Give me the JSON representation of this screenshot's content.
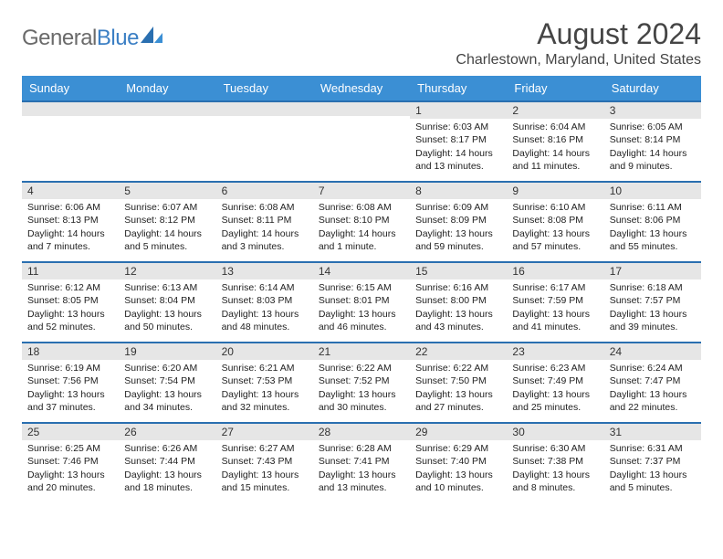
{
  "logo": {
    "text_gray": "General",
    "text_blue": "Blue"
  },
  "title": "August 2024",
  "subtitle": "Charlestown, Maryland, United States",
  "colors": {
    "header_bg": "#3b8fd4",
    "header_text": "#ffffff",
    "daynum_bg": "#e6e6e6",
    "row_border": "#2a6fb0",
    "body_text": "#222222",
    "title_text": "#454545",
    "logo_gray": "#6a6a6a",
    "logo_blue": "#3b7fc4",
    "page_bg": "#ffffff"
  },
  "weekdays": [
    "Sunday",
    "Monday",
    "Tuesday",
    "Wednesday",
    "Thursday",
    "Friday",
    "Saturday"
  ],
  "cells": [
    [
      {
        "day": "",
        "sunrise": "",
        "sunset": "",
        "daylight": ""
      },
      {
        "day": "",
        "sunrise": "",
        "sunset": "",
        "daylight": ""
      },
      {
        "day": "",
        "sunrise": "",
        "sunset": "",
        "daylight": ""
      },
      {
        "day": "",
        "sunrise": "",
        "sunset": "",
        "daylight": ""
      },
      {
        "day": "1",
        "sunrise": "Sunrise: 6:03 AM",
        "sunset": "Sunset: 8:17 PM",
        "daylight": "Daylight: 14 hours and 13 minutes."
      },
      {
        "day": "2",
        "sunrise": "Sunrise: 6:04 AM",
        "sunset": "Sunset: 8:16 PM",
        "daylight": "Daylight: 14 hours and 11 minutes."
      },
      {
        "day": "3",
        "sunrise": "Sunrise: 6:05 AM",
        "sunset": "Sunset: 8:14 PM",
        "daylight": "Daylight: 14 hours and 9 minutes."
      }
    ],
    [
      {
        "day": "4",
        "sunrise": "Sunrise: 6:06 AM",
        "sunset": "Sunset: 8:13 PM",
        "daylight": "Daylight: 14 hours and 7 minutes."
      },
      {
        "day": "5",
        "sunrise": "Sunrise: 6:07 AM",
        "sunset": "Sunset: 8:12 PM",
        "daylight": "Daylight: 14 hours and 5 minutes."
      },
      {
        "day": "6",
        "sunrise": "Sunrise: 6:08 AM",
        "sunset": "Sunset: 8:11 PM",
        "daylight": "Daylight: 14 hours and 3 minutes."
      },
      {
        "day": "7",
        "sunrise": "Sunrise: 6:08 AM",
        "sunset": "Sunset: 8:10 PM",
        "daylight": "Daylight: 14 hours and 1 minute."
      },
      {
        "day": "8",
        "sunrise": "Sunrise: 6:09 AM",
        "sunset": "Sunset: 8:09 PM",
        "daylight": "Daylight: 13 hours and 59 minutes."
      },
      {
        "day": "9",
        "sunrise": "Sunrise: 6:10 AM",
        "sunset": "Sunset: 8:08 PM",
        "daylight": "Daylight: 13 hours and 57 minutes."
      },
      {
        "day": "10",
        "sunrise": "Sunrise: 6:11 AM",
        "sunset": "Sunset: 8:06 PM",
        "daylight": "Daylight: 13 hours and 55 minutes."
      }
    ],
    [
      {
        "day": "11",
        "sunrise": "Sunrise: 6:12 AM",
        "sunset": "Sunset: 8:05 PM",
        "daylight": "Daylight: 13 hours and 52 minutes."
      },
      {
        "day": "12",
        "sunrise": "Sunrise: 6:13 AM",
        "sunset": "Sunset: 8:04 PM",
        "daylight": "Daylight: 13 hours and 50 minutes."
      },
      {
        "day": "13",
        "sunrise": "Sunrise: 6:14 AM",
        "sunset": "Sunset: 8:03 PM",
        "daylight": "Daylight: 13 hours and 48 minutes."
      },
      {
        "day": "14",
        "sunrise": "Sunrise: 6:15 AM",
        "sunset": "Sunset: 8:01 PM",
        "daylight": "Daylight: 13 hours and 46 minutes."
      },
      {
        "day": "15",
        "sunrise": "Sunrise: 6:16 AM",
        "sunset": "Sunset: 8:00 PM",
        "daylight": "Daylight: 13 hours and 43 minutes."
      },
      {
        "day": "16",
        "sunrise": "Sunrise: 6:17 AM",
        "sunset": "Sunset: 7:59 PM",
        "daylight": "Daylight: 13 hours and 41 minutes."
      },
      {
        "day": "17",
        "sunrise": "Sunrise: 6:18 AM",
        "sunset": "Sunset: 7:57 PM",
        "daylight": "Daylight: 13 hours and 39 minutes."
      }
    ],
    [
      {
        "day": "18",
        "sunrise": "Sunrise: 6:19 AM",
        "sunset": "Sunset: 7:56 PM",
        "daylight": "Daylight: 13 hours and 37 minutes."
      },
      {
        "day": "19",
        "sunrise": "Sunrise: 6:20 AM",
        "sunset": "Sunset: 7:54 PM",
        "daylight": "Daylight: 13 hours and 34 minutes."
      },
      {
        "day": "20",
        "sunrise": "Sunrise: 6:21 AM",
        "sunset": "Sunset: 7:53 PM",
        "daylight": "Daylight: 13 hours and 32 minutes."
      },
      {
        "day": "21",
        "sunrise": "Sunrise: 6:22 AM",
        "sunset": "Sunset: 7:52 PM",
        "daylight": "Daylight: 13 hours and 30 minutes."
      },
      {
        "day": "22",
        "sunrise": "Sunrise: 6:22 AM",
        "sunset": "Sunset: 7:50 PM",
        "daylight": "Daylight: 13 hours and 27 minutes."
      },
      {
        "day": "23",
        "sunrise": "Sunrise: 6:23 AM",
        "sunset": "Sunset: 7:49 PM",
        "daylight": "Daylight: 13 hours and 25 minutes."
      },
      {
        "day": "24",
        "sunrise": "Sunrise: 6:24 AM",
        "sunset": "Sunset: 7:47 PM",
        "daylight": "Daylight: 13 hours and 22 minutes."
      }
    ],
    [
      {
        "day": "25",
        "sunrise": "Sunrise: 6:25 AM",
        "sunset": "Sunset: 7:46 PM",
        "daylight": "Daylight: 13 hours and 20 minutes."
      },
      {
        "day": "26",
        "sunrise": "Sunrise: 6:26 AM",
        "sunset": "Sunset: 7:44 PM",
        "daylight": "Daylight: 13 hours and 18 minutes."
      },
      {
        "day": "27",
        "sunrise": "Sunrise: 6:27 AM",
        "sunset": "Sunset: 7:43 PM",
        "daylight": "Daylight: 13 hours and 15 minutes."
      },
      {
        "day": "28",
        "sunrise": "Sunrise: 6:28 AM",
        "sunset": "Sunset: 7:41 PM",
        "daylight": "Daylight: 13 hours and 13 minutes."
      },
      {
        "day": "29",
        "sunrise": "Sunrise: 6:29 AM",
        "sunset": "Sunset: 7:40 PM",
        "daylight": "Daylight: 13 hours and 10 minutes."
      },
      {
        "day": "30",
        "sunrise": "Sunrise: 6:30 AM",
        "sunset": "Sunset: 7:38 PM",
        "daylight": "Daylight: 13 hours and 8 minutes."
      },
      {
        "day": "31",
        "sunrise": "Sunrise: 6:31 AM",
        "sunset": "Sunset: 7:37 PM",
        "daylight": "Daylight: 13 hours and 5 minutes."
      }
    ]
  ]
}
